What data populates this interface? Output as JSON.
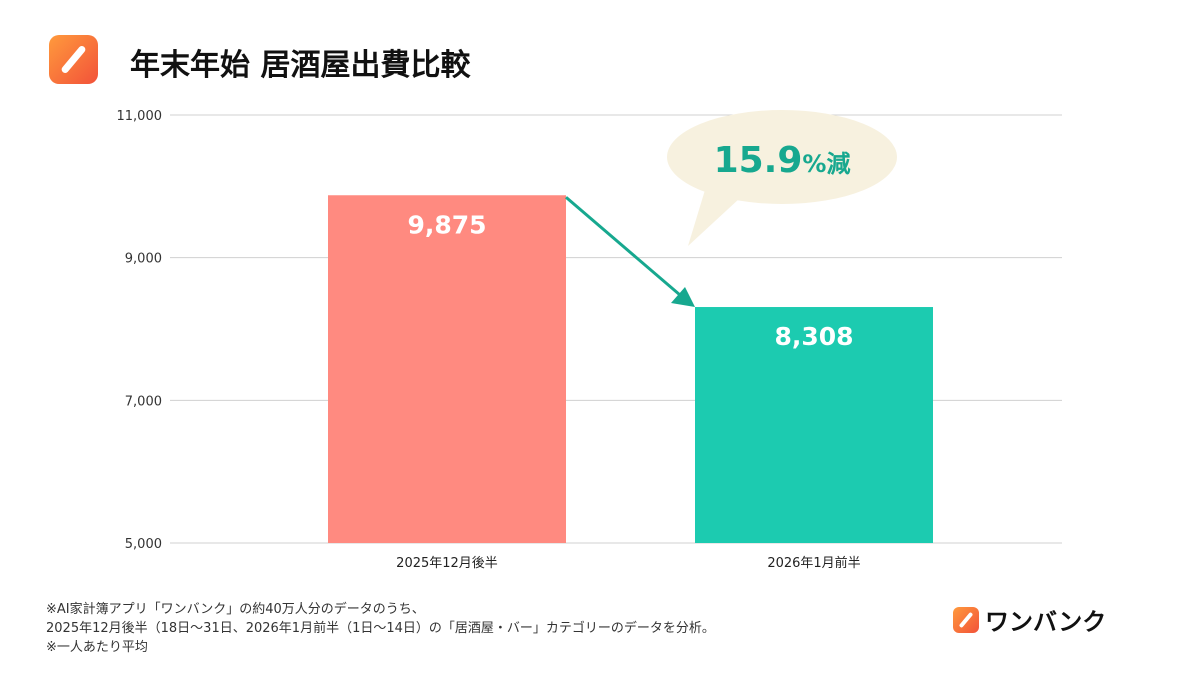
{
  "header": {
    "title": "年末年始 居酒屋出費比較",
    "logo_icon": "onebank-logo-icon"
  },
  "chart_data": {
    "type": "bar",
    "title": "年末年始 居酒屋出費比較",
    "categories": [
      "2025年12月後半",
      "2026年1月前半"
    ],
    "values": [
      9875,
      8308
    ],
    "data_labels": [
      "9,875",
      "8,308"
    ],
    "colors": [
      "#ff8a80",
      "#1ccbb0"
    ],
    "ylim": [
      5000,
      11000
    ],
    "yticks": [
      5000,
      7000,
      9000,
      11000
    ],
    "ytick_labels": [
      "5,000",
      "7,000",
      "9,000",
      "11,000"
    ],
    "grid": true,
    "annotation": {
      "value": "15.9",
      "suffix": "%減",
      "color": "#17a88f",
      "bubble_color": "#f7f1df"
    }
  },
  "footer": {
    "notes": [
      "※AI家計簿アプリ「ワンバンク」の約40万人分のデータのうち、",
      "2025年12月後半（18日〜31日、2026年1月前半（1日〜14日）の「居酒屋・バー」カテゴリーのデータを分析。",
      "※一人あたり平均"
    ],
    "brand": "ワンバンク"
  }
}
